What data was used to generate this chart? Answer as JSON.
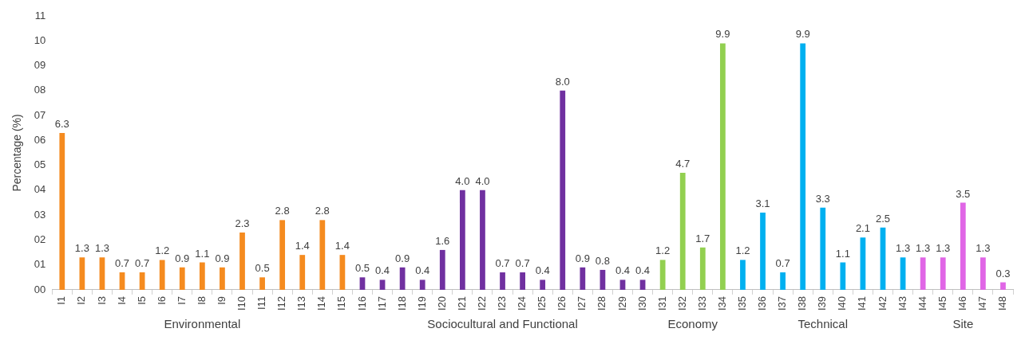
{
  "chart_data": {
    "type": "bar",
    "ylabel": "Percentage (%)",
    "categories": [
      "I1",
      "I2",
      "I3",
      "I4",
      "I5",
      "I6",
      "I7",
      "I8",
      "I9",
      "I10",
      "I11",
      "I12",
      "I13",
      "I14",
      "I15",
      "I16",
      "I17",
      "I18",
      "I19",
      "I20",
      "I21",
      "I22",
      "I23",
      "I24",
      "I25",
      "I26",
      "I27",
      "I28",
      "I29",
      "I30",
      "I31",
      "I32",
      "I33",
      "I34",
      "I35",
      "I36",
      "I37",
      "I38",
      "I39",
      "I40",
      "I41",
      "I42",
      "I43",
      "I44",
      "I45",
      "I46",
      "I47",
      "I48"
    ],
    "ylim": [
      0,
      11
    ],
    "yticks": [
      {
        "value": 0,
        "label": "00"
      },
      {
        "value": 1,
        "label": "01"
      },
      {
        "value": 2,
        "label": "02"
      },
      {
        "value": 3,
        "label": "03"
      },
      {
        "value": 4,
        "label": "04"
      },
      {
        "value": 5,
        "label": "05"
      },
      {
        "value": 6,
        "label": "06"
      },
      {
        "value": 7,
        "label": "07"
      },
      {
        "value": 8,
        "label": "08"
      },
      {
        "value": 9,
        "label": "09"
      },
      {
        "value": 10,
        "label": "10"
      },
      {
        "value": 11,
        "label": "11"
      }
    ],
    "grid": false,
    "legend": false,
    "series": [
      {
        "name": "Environmental",
        "color": "#f58b1f",
        "values": [
          6.3,
          1.3,
          1.3,
          0.7,
          0.7,
          1.2,
          0.9,
          1.1,
          0.9,
          2.3,
          0.5,
          2.8,
          1.4,
          2.8,
          1.4,
          null,
          null,
          null,
          null,
          null,
          null,
          null,
          null,
          null,
          null,
          null,
          null,
          null,
          null,
          null,
          null,
          null,
          null,
          null,
          null,
          null,
          null,
          null,
          null,
          null,
          null,
          null,
          null,
          null,
          null,
          null,
          null,
          null
        ],
        "value_labels": [
          "6.3",
          "1.3",
          "1.3",
          "0.7",
          "0.7",
          "1.2",
          "0.9",
          "1.1",
          "0.9",
          "2.3",
          "0.5",
          "2.8",
          "1.4",
          "2.8",
          "1.4",
          null,
          null,
          null,
          null,
          null,
          null,
          null,
          null,
          null,
          null,
          null,
          null,
          null,
          null,
          null,
          null,
          null,
          null,
          null,
          null,
          null,
          null,
          null,
          null,
          null,
          null,
          null,
          null,
          null,
          null,
          null,
          null,
          null
        ]
      },
      {
        "name": "Sociocultural and Functional",
        "color": "#7030a0",
        "values": [
          null,
          null,
          null,
          null,
          null,
          null,
          null,
          null,
          null,
          null,
          null,
          null,
          null,
          null,
          null,
          0.5,
          0.4,
          0.9,
          0.4,
          1.6,
          4.0,
          4.0,
          0.7,
          0.7,
          0.4,
          8.0,
          0.9,
          0.8,
          0.4,
          0.4,
          null,
          null,
          null,
          null,
          null,
          null,
          null,
          null,
          null,
          null,
          null,
          null,
          null,
          null,
          null,
          null,
          null,
          null
        ],
        "value_labels": [
          null,
          null,
          null,
          null,
          null,
          null,
          null,
          null,
          null,
          null,
          null,
          null,
          null,
          null,
          null,
          "0.5",
          "0.4",
          "0.9",
          "0.4",
          "1.6",
          "4.0",
          "4.0",
          "0.7",
          "0.7",
          "0.4",
          "8.0",
          "0.9",
          "0.8",
          "0.4",
          "0.4",
          null,
          null,
          null,
          null,
          null,
          null,
          null,
          null,
          null,
          null,
          null,
          null,
          null,
          null,
          null,
          null,
          null,
          null
        ]
      },
      {
        "name": "Economy",
        "color": "#92d050",
        "values": [
          null,
          null,
          null,
          null,
          null,
          null,
          null,
          null,
          null,
          null,
          null,
          null,
          null,
          null,
          null,
          null,
          null,
          null,
          null,
          null,
          null,
          null,
          null,
          null,
          null,
          null,
          null,
          null,
          null,
          null,
          1.2,
          4.7,
          1.7,
          9.9,
          null,
          null,
          null,
          null,
          null,
          null,
          null,
          null,
          null,
          null,
          null,
          null,
          null,
          null
        ],
        "value_labels": [
          null,
          null,
          null,
          null,
          null,
          null,
          null,
          null,
          null,
          null,
          null,
          null,
          null,
          null,
          null,
          null,
          null,
          null,
          null,
          null,
          null,
          null,
          null,
          null,
          null,
          null,
          null,
          null,
          null,
          null,
          "1.2",
          "4.7",
          "1.7",
          "9.9",
          null,
          null,
          null,
          null,
          null,
          null,
          null,
          null,
          null,
          null,
          null,
          null,
          null,
          null
        ]
      },
      {
        "name": "Technical",
        "color": "#00b0f0",
        "values": [
          null,
          null,
          null,
          null,
          null,
          null,
          null,
          null,
          null,
          null,
          null,
          null,
          null,
          null,
          null,
          null,
          null,
          null,
          null,
          null,
          null,
          null,
          null,
          null,
          null,
          null,
          null,
          null,
          null,
          null,
          null,
          null,
          null,
          null,
          1.2,
          3.1,
          0.7,
          9.9,
          3.3,
          1.1,
          2.1,
          2.5,
          1.3,
          null,
          null,
          null,
          null,
          null
        ],
        "value_labels": [
          null,
          null,
          null,
          null,
          null,
          null,
          null,
          null,
          null,
          null,
          null,
          null,
          null,
          null,
          null,
          null,
          null,
          null,
          null,
          null,
          null,
          null,
          null,
          null,
          null,
          null,
          null,
          null,
          null,
          null,
          null,
          null,
          null,
          null,
          "1.2",
          "3.1",
          "0.7",
          "9.9",
          "3.3",
          "1.1",
          "2.1",
          "2.5",
          "1.3",
          null,
          null,
          null,
          null,
          null
        ]
      },
      {
        "name": "Site",
        "color": "#e066e6",
        "values": [
          null,
          null,
          null,
          null,
          null,
          null,
          null,
          null,
          null,
          null,
          null,
          null,
          null,
          null,
          null,
          null,
          null,
          null,
          null,
          null,
          null,
          null,
          null,
          null,
          null,
          null,
          null,
          null,
          null,
          null,
          null,
          null,
          null,
          null,
          null,
          null,
          null,
          null,
          null,
          null,
          null,
          null,
          null,
          1.3,
          1.3,
          3.5,
          1.3,
          0.3
        ],
        "value_labels": [
          null,
          null,
          null,
          null,
          null,
          null,
          null,
          null,
          null,
          null,
          null,
          null,
          null,
          null,
          null,
          null,
          null,
          null,
          null,
          null,
          null,
          null,
          null,
          null,
          null,
          null,
          null,
          null,
          null,
          null,
          null,
          null,
          null,
          null,
          null,
          null,
          null,
          null,
          null,
          null,
          null,
          null,
          null,
          "1.3",
          "1.3",
          "3.5",
          "1.3",
          "0.3"
        ]
      }
    ]
  }
}
